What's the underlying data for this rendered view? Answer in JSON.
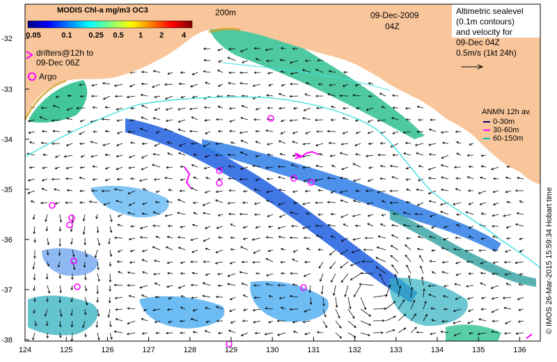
{
  "map": {
    "date": "09-Dec-2009",
    "time_label": "04Z",
    "isobath_label": "200m",
    "credit": "© IMOS 26-Mar-2015 15:59:34 Hobart time"
  },
  "colorbar": {
    "title": "MODIS Chl-a mg/m3 OC3",
    "ticks": [
      "0.05",
      "0.1",
      "0.25",
      "0.5",
      "1",
      "2",
      "4"
    ],
    "colors": [
      "#000080",
      "#0000ff",
      "#0080ff",
      "#00ffff",
      "#80ff80",
      "#ffff00",
      "#ff8000",
      "#ff0000",
      "#800000"
    ]
  },
  "legend_left": {
    "drifters_line1": "drifters@12h to",
    "drifters_line2": "09-Dec 06Z",
    "argo": "Argo",
    "marker_color": "#ff00ff"
  },
  "legend_right": {
    "line1": "Altimetric sealevel",
    "line2": "(0.1m contours)",
    "line3": "and velocity for",
    "line4": "09-Dec 04Z",
    "line5": "0.5m/s (1kt 24h)"
  },
  "anmn": {
    "title": "ANMN 12h av.",
    "items": [
      {
        "label": "0-30m",
        "color": "#000080"
      },
      {
        "label": "30-60m",
        "color": "#ff00ff"
      },
      {
        "label": "60-150m",
        "color": "#00c0c0"
      }
    ]
  },
  "axes": {
    "x_ticks": [
      "124",
      "125",
      "126",
      "127",
      "128",
      "129",
      "130",
      "131",
      "132",
      "133",
      "134",
      "135",
      "136"
    ],
    "y_ticks": [
      "-32",
      "-33",
      "-34",
      "-35",
      "-36",
      "-37",
      "-38"
    ]
  },
  "colors": {
    "land": "#f9c69b",
    "ocean": "#ffffff",
    "shelf_contour": "#40e0e0",
    "chl_low": "#1e5fe0",
    "chl_mid": "#30a0f0",
    "chl_high": "#30c090"
  }
}
